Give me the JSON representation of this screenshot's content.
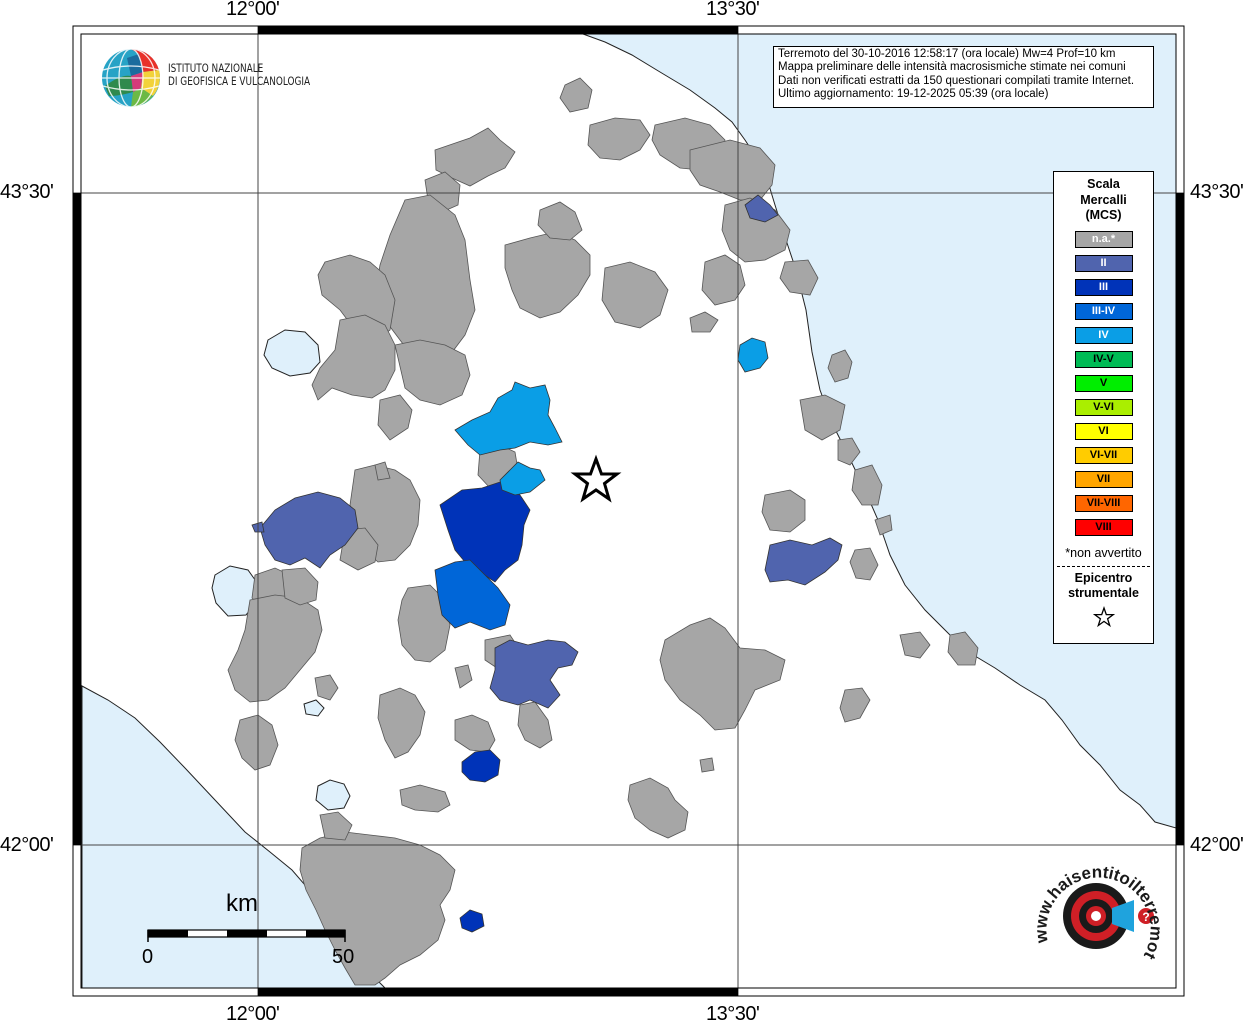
{
  "coordinates": {
    "lon_left_top": "12°00'",
    "lon_right_top": "13°30'",
    "lon_left_bottom": "12°00'",
    "lon_right_bottom": "13°30'",
    "lat_upper_left": "43°30'",
    "lat_upper_right": "43°30'",
    "lat_lower_left": "42°00'",
    "lat_lower_right": "42°00'"
  },
  "info": {
    "line1": "Terremoto del 30-10-2016 12:58:17 (ora locale) Mw=4 Prof=10 km",
    "line2": "Mappa preliminare delle intensità macrosismiche stimate nei comuni",
    "line3": "Dati non verificati estratti da 150 questionari compilati tramite Internet.",
    "line4": "Ultimo aggiornamento: 19-12-2025 05:39 (ora locale)"
  },
  "logo": {
    "line1": "ISTITUTO NAZIONALE",
    "line2": "DI GEOFISICA E VULCANOLOGIA",
    "icon": "ingv-globe-icon"
  },
  "legend": {
    "title_line1": "Scala",
    "title_line2": "Mercalli",
    "title_line3": "(MCS)",
    "items": [
      {
        "label": "n.a.*",
        "color": "#a6a6a6",
        "text_color": "#ffffff"
      },
      {
        "label": "II",
        "color": "#5064ae",
        "text_color": "#ffffff"
      },
      {
        "label": "III",
        "color": "#0033b8",
        "text_color": "#ffffff"
      },
      {
        "label": "III-IV",
        "color": "#0066d8",
        "text_color": "#ffffff"
      },
      {
        "label": "IV",
        "color": "#0a9ee6",
        "text_color": "#ffffff"
      },
      {
        "label": "IV-V",
        "color": "#00bb55",
        "text_color": "#000000"
      },
      {
        "label": "V",
        "color": "#00ee00",
        "text_color": "#000000"
      },
      {
        "label": "V-VI",
        "color": "#aaee00",
        "text_color": "#000000"
      },
      {
        "label": "VI",
        "color": "#ffff00",
        "text_color": "#000000"
      },
      {
        "label": "VI-VII",
        "color": "#ffcc00",
        "text_color": "#000000"
      },
      {
        "label": "VII",
        "color": "#ffa500",
        "text_color": "#000000"
      },
      {
        "label": "VII-VIII",
        "color": "#ff6600",
        "text_color": "#000000"
      },
      {
        "label": "VIII",
        "color": "#ff0000",
        "text_color": "#000000"
      }
    ],
    "note": "*non avvertito",
    "epicenter_line1": "Epicentro",
    "epicenter_line2": "strumentale",
    "epicenter_icon": "star-icon"
  },
  "scalebar": {
    "unit": "km",
    "start": "0",
    "end": "50"
  },
  "badge": {
    "text": "www.haisentitoilterremoto.it",
    "icon": "haisentito-logo-icon"
  },
  "colors": {
    "sea": "#dff0fb",
    "land": "#ffffff",
    "municipality_na": "#a6a6a6",
    "intensity_II": "#5064ae",
    "intensity_III": "#0033b8",
    "intensity_III_IV": "#0066d8",
    "intensity_IV": "#0a9ee6"
  }
}
